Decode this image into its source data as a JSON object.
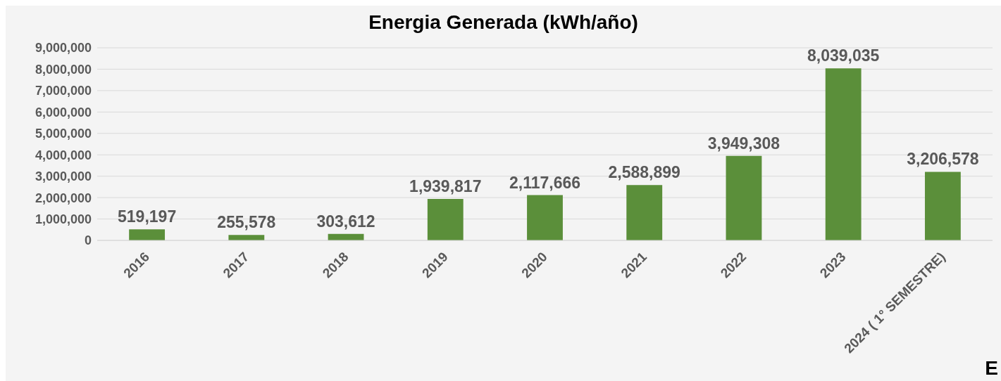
{
  "chart_data": {
    "type": "bar",
    "title": "Energia Generada (kWh/año)",
    "categories": [
      "2016",
      "2017",
      "2018",
      "2019",
      "2020",
      "2021",
      "2022",
      "2023",
      "2024 ( 1° SEMESTRE)"
    ],
    "values": [
      519197,
      255578,
      303612,
      1939817,
      2117666,
      2588899,
      3949308,
      8039035,
      3206578
    ],
    "color": "#5b8f3a",
    "value_labels": [
      "519,197",
      "255,578",
      "303,612",
      "1,939,817",
      "2,117,666",
      "2,588,899",
      "3,949,308",
      "8,039,035",
      "3,206,578"
    ],
    "ylim": [
      0,
      9000000
    ],
    "yticks": [
      0,
      {
        "value": 1000000,
        "label": "1,000,000"
      },
      {
        "value": 2000000,
        "label": "2,000,000"
      },
      {
        "value": 3000000,
        "label": "3,000,000"
      },
      {
        "value": 4000000,
        "label": "4,000,000"
      },
      {
        "value": 5000000,
        "label": "5,000,000"
      },
      {
        "value": 6000000,
        "label": "6,000,000"
      },
      {
        "value": 7000000,
        "label": "7,000,000"
      },
      {
        "value": 8000000,
        "label": "8,000,000"
      },
      {
        "value": 9000000,
        "label": "9,000,000"
      }
    ],
    "grid": "y",
    "annotations": [
      "E"
    ]
  }
}
